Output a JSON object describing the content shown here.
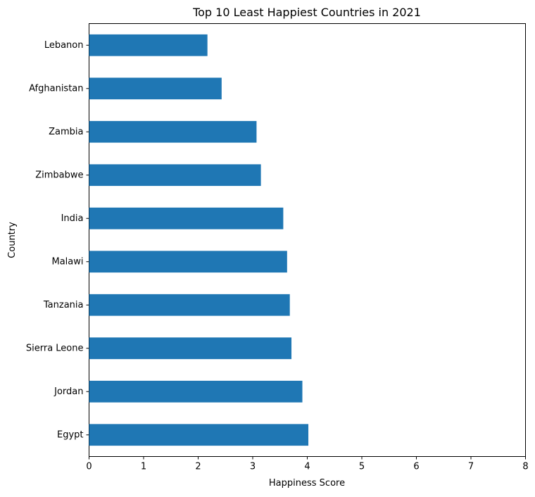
{
  "chart_data": {
    "type": "bar",
    "orientation": "horizontal",
    "title": "Top 10 Least Happiest Countries in 2021",
    "xlabel": "Happiness Score",
    "ylabel": "Country",
    "categories": [
      "Lebanon",
      "Afghanistan",
      "Zambia",
      "Zimbabwe",
      "India",
      "Malawi",
      "Tanzania",
      "Sierra Leone",
      "Jordan",
      "Egypt"
    ],
    "values": [
      2.17,
      2.43,
      3.07,
      3.15,
      3.56,
      3.63,
      3.68,
      3.71,
      3.91,
      4.02
    ],
    "xlim": [
      0,
      8
    ],
    "xticks": [
      "0",
      "1",
      "2",
      "3",
      "4",
      "5",
      "6",
      "7",
      "8"
    ],
    "bar_color": "#1f77b4",
    "grid": false,
    "legend": "none"
  }
}
